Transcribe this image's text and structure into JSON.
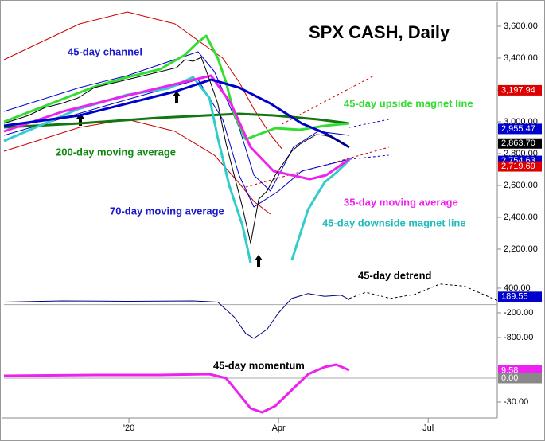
{
  "chart_data": [
    {
      "type": "line",
      "title": "SPX CASH, Daily",
      "xlim": [
        -15,
        285
      ],
      "xticks": [
        {
          "value": 61,
          "label": "'20"
        },
        {
          "value": 152,
          "label": "Apr"
        },
        {
          "value": 243,
          "label": "Jul"
        }
      ],
      "ylim": [
        2090,
        3740
      ],
      "yticks": [
        {
          "value": 2200,
          "label": "2,200.00"
        },
        {
          "value": 2400,
          "label": "2,400.00"
        },
        {
          "value": 2600,
          "label": "2,600.00"
        },
        {
          "value": 2800,
          "label": "2,800.00"
        },
        {
          "value": 3000,
          "label": "3,000.00"
        },
        {
          "value": 3200,
          "label": "3,200.00"
        },
        {
          "value": 3400,
          "label": "3,400.00"
        },
        {
          "value": 3600,
          "label": "3,600.00"
        }
      ],
      "series": [
        {
          "color": "#cc0000",
          "style": "thin",
          "x": [
            -15,
            31,
            60,
            89,
            118,
            128,
            137,
            147,
            154
          ],
          "values": [
            3390,
            3615,
            3690,
            3615,
            3400,
            3250,
            3080,
            2920,
            2830
          ]
        },
        {
          "color": "#cc0000",
          "style": "dashed",
          "x": [
            154,
            210
          ],
          "values": [
            2985,
            3290
          ]
        },
        {
          "color": "#cc0000",
          "style": "thin",
          "x": [
            -15,
            31,
            60,
            89,
            113,
            128,
            137,
            147
          ],
          "values": [
            2815,
            2965,
            3015,
            2940,
            2790,
            2615,
            2500,
            2420
          ]
        },
        {
          "color": "#cc0000",
          "style": "dashed",
          "x": [
            132,
            219
          ],
          "values": [
            2590,
            2840
          ]
        },
        {
          "color": "#0000cc",
          "style": "thin",
          "x": [
            -15,
            31,
            60,
            103,
            113,
            128,
            137,
            147,
            161,
            176,
            195
          ],
          "values": [
            3065,
            3215,
            3290,
            3440,
            3315,
            2965,
            2665,
            2565,
            2840,
            2940,
            2915
          ]
        },
        {
          "color": "#0000cc",
          "style": "dashed",
          "x": [
            195,
            219
          ],
          "values": [
            2965,
            3015
          ]
        },
        {
          "color": "#0000cc",
          "style": "thin",
          "x": [
            -15,
            60,
            103,
            118,
            128,
            137,
            152,
            166,
            195
          ],
          "values": [
            2915,
            3140,
            3265,
            3015,
            2665,
            2465,
            2565,
            2690,
            2765
          ]
        },
        {
          "color": "#0000cc",
          "style": "dashed",
          "x": [
            195,
            219
          ],
          "values": [
            2765,
            2790
          ]
        },
        {
          "color": "#117711",
          "style": "thick",
          "x": [
            -15,
            31,
            79,
            128,
            149,
            176,
            195
          ],
          "values": [
            2965,
            2990,
            3025,
            3050,
            3040,
            3015,
            2990
          ]
        },
        {
          "color": "#33dd33",
          "style": "thick",
          "x": [
            -15,
            0,
            20,
            40,
            60,
            80,
            95,
            103,
            108,
            115,
            120,
            125,
            132,
            150,
            165,
            180,
            195
          ],
          "values": [
            3000,
            3060,
            3140,
            3220,
            3280,
            3330,
            3420,
            3500,
            3540,
            3400,
            3250,
            3050,
            2890,
            2960,
            2950,
            2975,
            2990
          ]
        },
        {
          "color": "#33cccc",
          "style": "thick",
          "x": [
            -15,
            10,
            30,
            60,
            85,
            100,
            110,
            115,
            122,
            130,
            135,
            145,
            160,
            170,
            180,
            187,
            195
          ],
          "values": [
            2880,
            2990,
            3080,
            3170,
            3210,
            3280,
            3150,
            2900,
            2600,
            2350,
            2115,
            null,
            2130,
            2450,
            2620,
            2680,
            2760
          ]
        },
        {
          "color": "#ee22ee",
          "style": "thick",
          "x": [
            -15,
            21,
            60,
            111,
            123,
            135,
            149,
            171,
            181,
            195
          ],
          "values": [
            2940,
            3065,
            3165,
            3290,
            3115,
            2840,
            2690,
            2640,
            2665,
            2765
          ]
        },
        {
          "color": "#0000cc",
          "style": "thick",
          "x": [
            -15,
            31,
            60,
            89,
            111,
            128,
            147,
            166,
            181,
            195
          ],
          "values": [
            2975,
            3040,
            3115,
            3190,
            3265,
            3215,
            3115,
            2990,
            2925,
            2840
          ]
        },
        {
          "color": "#000000",
          "style": "thin",
          "x": [
            -15,
            0,
            10,
            20,
            30,
            40,
            50,
            60,
            70,
            80,
            90,
            95,
            100,
            105,
            110,
            115,
            120,
            125,
            130,
            135,
            140,
            145,
            150,
            155,
            160,
            165,
            170,
            175,
            180,
            185,
            190,
            195
          ],
          "values": [
            2990,
            3040,
            3090,
            3115,
            3150,
            3215,
            3240,
            3265,
            3290,
            3315,
            3340,
            3390,
            3380,
            3405,
            3265,
            3115,
            2865,
            2665,
            2465,
            2237,
            2515,
            2565,
            2665,
            2740,
            2815,
            2860,
            2890,
            2920,
            2915,
            2900,
            2875,
            2840
          ]
        }
      ],
      "annotations": [
        {
          "text": "45-day channel",
          "color": "#1a1acc"
        },
        {
          "text": "45-day upside magnet line",
          "color": "#33dd33"
        },
        {
          "text": "200-day moving average",
          "color": "#118811"
        },
        {
          "text": "35-day moving average",
          "color": "#ee22ee"
        },
        {
          "text": "70-day moving average",
          "color": "#1a1acc"
        },
        {
          "text": "45-day downside magnet line",
          "color": "#22bbbb"
        }
      ],
      "value_tags": [
        {
          "value": 3197.94,
          "label": "3,197.94",
          "color": "#dd0000"
        },
        {
          "value": 2955.47,
          "label": "2,955.47",
          "color": "#0000cc"
        },
        {
          "value": 2863.7,
          "label": "2,863.70",
          "color": "#000000"
        },
        {
          "value": 2754.63,
          "label": "2,754.63",
          "color": "#0000cc"
        },
        {
          "value": 2719.69,
          "label": "2,719.69",
          "color": "#dd0000"
        }
      ]
    },
    {
      "type": "line",
      "title": "45-day detrend",
      "ylim": [
        -1110,
        825
      ],
      "yticks": [
        {
          "value": 400,
          "label": "400.00"
        },
        {
          "value": -200,
          "label": "-200.00"
        },
        {
          "value": -800,
          "label": "-800.00"
        }
      ],
      "zero_line": true,
      "series": [
        {
          "color": "#000080",
          "style": "thin",
          "x": [
            -15,
            20,
            60,
            100,
            115,
            125,
            132,
            137,
            145,
            152,
            160,
            170,
            180,
            190,
            195
          ],
          "values": [
            60,
            90,
            80,
            90,
            60,
            -300,
            -700,
            -820,
            -600,
            -200,
            150,
            270,
            200,
            230,
            120
          ]
        },
        {
          "color": "#000000",
          "style": "dashed",
          "x": [
            195,
            205,
            220,
            235,
            250,
            265,
            285
          ],
          "values": [
            150,
            300,
            150,
            250,
            500,
            450,
            100
          ]
        }
      ],
      "value_tags": [
        {
          "value": 189.55,
          "label": "189.55",
          "color": "#0000cc"
        }
      ]
    },
    {
      "type": "line",
      "title": "45-day momentum",
      "ylim": [
        -50,
        30
      ],
      "yticks": [
        {
          "value": -30,
          "label": "-30.00"
        }
      ],
      "zero_line": true,
      "series": [
        {
          "color": "#ee22ee",
          "style": "thick",
          "x": [
            -15,
            40,
            80,
            110,
            120,
            128,
            135,
            142,
            150,
            160,
            170,
            180,
            187,
            195
          ],
          "values": [
            3,
            4,
            4,
            5,
            0,
            -20,
            -38,
            -43,
            -35,
            -15,
            5,
            14,
            17,
            10
          ]
        }
      ],
      "value_tags": [
        {
          "value": 9.58,
          "label": "9.58",
          "color": "#ee22ee"
        },
        {
          "value": 0,
          "label": "0.00",
          "color": "#888888"
        }
      ]
    }
  ]
}
